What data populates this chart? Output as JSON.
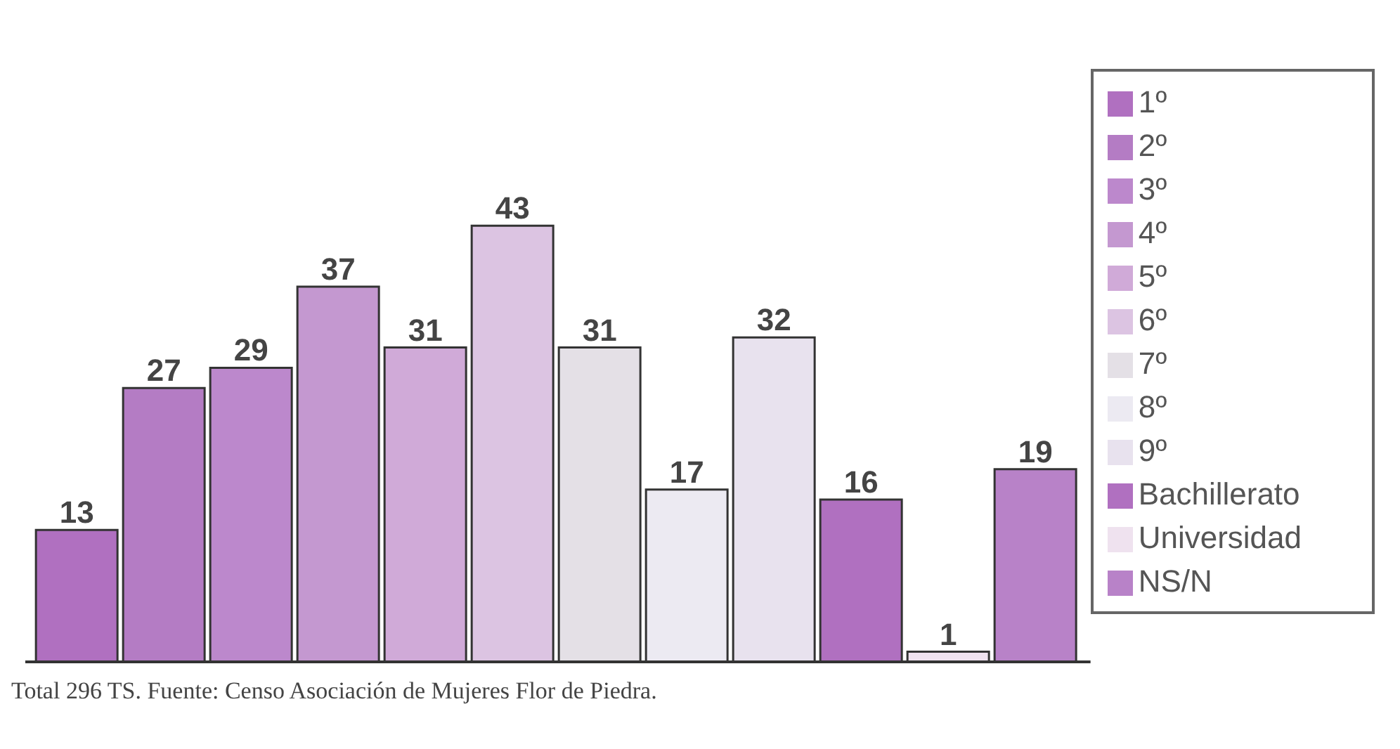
{
  "chart_data": {
    "type": "bar",
    "categories": [
      null
    ],
    "series": [
      {
        "name": "1º",
        "color": "#b070c0",
        "values": [
          13
        ]
      },
      {
        "name": "2º",
        "color": "#b47cc4",
        "values": [
          27
        ]
      },
      {
        "name": "3º",
        "color": "#bc88cc",
        "values": [
          29
        ]
      },
      {
        "name": "4º",
        "color": "#c498d0",
        "values": [
          37
        ]
      },
      {
        "name": "5º",
        "color": "#d0aad8",
        "values": [
          31
        ]
      },
      {
        "name": "6º",
        "color": "#dcc4e2",
        "values": [
          43
        ]
      },
      {
        "name": "7º",
        "color": "#e4e0e6",
        "values": [
          31
        ]
      },
      {
        "name": "8º",
        "color": "#eceaf2",
        "values": [
          17
        ]
      },
      {
        "name": "9º",
        "color": "#e8e2ee",
        "values": [
          32
        ]
      },
      {
        "name": "Bachillerato",
        "color": "#b070c0",
        "values": [
          16
        ]
      },
      {
        "name": "Universidad",
        "color": "#efe2ef",
        "values": [
          1
        ]
      },
      {
        "name": "NS/N",
        "color": "#b882c8",
        "values": [
          19
        ]
      }
    ],
    "data_labels": true,
    "legend": "right",
    "tick_labels": false,
    "annotations": [
      "Total 296 TS. Fuente: Censo Asociación de Mujeres Flor de Piedra."
    ]
  }
}
